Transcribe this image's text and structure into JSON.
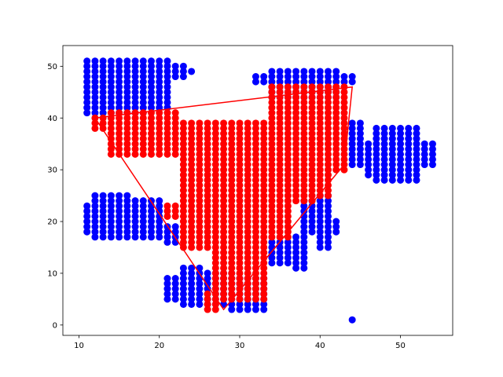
{
  "chart_data": {
    "type": "scatter",
    "title": "",
    "xlabel": "",
    "ylabel": "",
    "xlim": [
      8,
      56.5
    ],
    "ylim": [
      -2,
      54
    ],
    "x_ticks": [
      10,
      20,
      30,
      40,
      50
    ],
    "y_ticks": [
      0,
      10,
      20,
      30,
      40,
      50
    ],
    "x_tick_labels": [
      "10",
      "20",
      "30",
      "40",
      "50"
    ],
    "y_tick_labels": [
      "0",
      "10",
      "20",
      "30",
      "40",
      "50"
    ],
    "grid": false,
    "series": [
      {
        "color": "#0000ff",
        "marker": "circle",
        "rects": [
          [
            11,
            18,
            41,
            51
          ],
          [
            19,
            21,
            42,
            51
          ],
          [
            22,
            23,
            48,
            50
          ],
          [
            24,
            24,
            49,
            49
          ],
          [
            11,
            11,
            18,
            23
          ],
          [
            12,
            16,
            17,
            25
          ],
          [
            17,
            20,
            17,
            24
          ],
          [
            21,
            22,
            16,
            19
          ],
          [
            21,
            22,
            5,
            9
          ],
          [
            23,
            25,
            4,
            11
          ],
          [
            26,
            29,
            4,
            10
          ],
          [
            29,
            33,
            3,
            9
          ],
          [
            34,
            36,
            12,
            16
          ],
          [
            37,
            38,
            11,
            17
          ],
          [
            38,
            39,
            18,
            24
          ],
          [
            40,
            41,
            15,
            25
          ],
          [
            42,
            42,
            18,
            20
          ],
          [
            32,
            33,
            47,
            48
          ],
          [
            34,
            42,
            44,
            49
          ],
          [
            43,
            44,
            47,
            48
          ],
          [
            44,
            45,
            31,
            39
          ],
          [
            46,
            46,
            29,
            35
          ],
          [
            47,
            52,
            28,
            38
          ],
          [
            53,
            54,
            31,
            35
          ]
        ],
        "points": [
          [
            44,
            1
          ],
          [
            52,
            38
          ]
        ]
      },
      {
        "color": "#ff0000",
        "marker": "circle",
        "rects": [
          [
            12,
            14,
            38,
            40
          ],
          [
            14,
            22,
            33,
            41
          ],
          [
            23,
            33,
            30,
            39
          ],
          [
            34,
            43,
            30,
            46
          ],
          [
            21,
            22,
            21,
            23
          ],
          [
            23,
            26,
            15,
            31
          ],
          [
            27,
            33,
            5,
            30
          ],
          [
            26,
            27,
            3,
            6
          ],
          [
            34,
            36,
            17,
            30
          ],
          [
            37,
            39,
            24,
            30
          ],
          [
            40,
            41,
            25,
            30
          ],
          [
            23,
            24,
            29,
            33
          ]
        ],
        "points": [
          [
            23,
            30
          ],
          [
            34,
            40
          ],
          [
            36,
            41
          ]
        ]
      }
    ],
    "hull": {
      "color": "#ff0000",
      "x": [
        12,
        44,
        43,
        28,
        12
      ],
      "y": [
        40,
        46,
        31,
        3,
        40
      ]
    }
  }
}
